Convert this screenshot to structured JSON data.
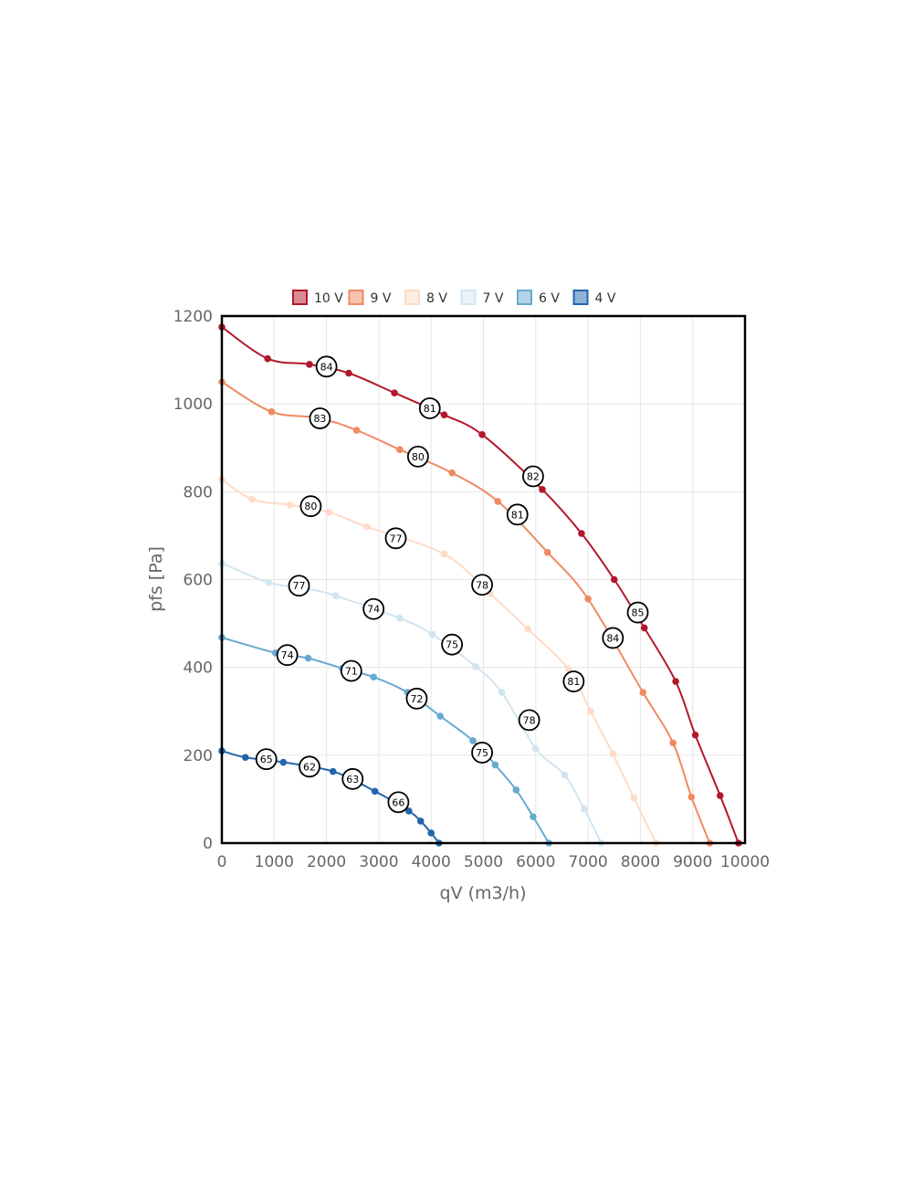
{
  "chart_data": {
    "type": "line",
    "title": "",
    "xlabel": "qV (m3/h)",
    "ylabel": "pfs [Pa]",
    "xlim": [
      0,
      10000
    ],
    "ylim": [
      0,
      1200
    ],
    "x_ticks": [
      "0",
      "1000",
      "2000",
      "3000",
      "4000",
      "5000",
      "6000",
      "7000",
      "8000",
      "9000",
      "10000"
    ],
    "y_ticks": [
      "0",
      "200",
      "400",
      "600",
      "800",
      "1000",
      "1200"
    ],
    "grid": true,
    "legend_position": "top",
    "series": [
      {
        "name": "10 V",
        "color": "#b2182b",
        "points": [
          [
            0,
            1175
          ],
          [
            875,
            1103
          ],
          [
            1675,
            1090
          ],
          [
            2425,
            1070
          ],
          [
            3300,
            1025
          ],
          [
            4250,
            975
          ],
          [
            4975,
            930
          ],
          [
            6125,
            805
          ],
          [
            6875,
            705
          ],
          [
            7500,
            600
          ],
          [
            8075,
            490
          ],
          [
            8675,
            368
          ],
          [
            9050,
            246
          ],
          [
            9525,
            108
          ],
          [
            9875,
            0
          ]
        ],
        "labels": [
          {
            "x": 2000,
            "y": 1085,
            "text": "84"
          },
          {
            "x": 3975,
            "y": 990,
            "text": "81"
          },
          {
            "x": 5950,
            "y": 835,
            "text": "82"
          },
          {
            "x": 7950,
            "y": 525,
            "text": "85"
          }
        ]
      },
      {
        "name": "9 V",
        "color": "#ef8a62",
        "points": [
          [
            0,
            1050
          ],
          [
            950,
            982
          ],
          [
            1850,
            968
          ],
          [
            2575,
            940
          ],
          [
            3400,
            896
          ],
          [
            4400,
            843
          ],
          [
            5275,
            778
          ],
          [
            6225,
            662
          ],
          [
            7000,
            556
          ],
          [
            8050,
            343
          ],
          [
            8625,
            228
          ],
          [
            8975,
            105
          ],
          [
            9325,
            0
          ]
        ],
        "labels": [
          {
            "x": 1875,
            "y": 967,
            "text": "83"
          },
          {
            "x": 3750,
            "y": 880,
            "text": "80"
          },
          {
            "x": 5650,
            "y": 748,
            "text": "81"
          },
          {
            "x": 7475,
            "y": 467,
            "text": "84"
          }
        ]
      },
      {
        "name": "8 V",
        "color": "#fddbc7",
        "points": [
          [
            0,
            828
          ],
          [
            575,
            783
          ],
          [
            1300,
            770
          ],
          [
            2050,
            753
          ],
          [
            2775,
            720
          ],
          [
            4250,
            658
          ],
          [
            5125,
            568
          ],
          [
            5850,
            487
          ],
          [
            6625,
            396
          ],
          [
            7050,
            300
          ],
          [
            7475,
            203
          ],
          [
            7875,
            103
          ],
          [
            8300,
            0
          ]
        ],
        "labels": [
          {
            "x": 1700,
            "y": 767,
            "text": "80"
          },
          {
            "x": 3325,
            "y": 694,
            "text": "77"
          },
          {
            "x": 4975,
            "y": 588,
            "text": "78"
          },
          {
            "x": 6725,
            "y": 368,
            "text": "81"
          }
        ]
      },
      {
        "name": "7 V",
        "color": "#d1e5f0",
        "points": [
          [
            0,
            637
          ],
          [
            900,
            593
          ],
          [
            1600,
            580
          ],
          [
            2175,
            563
          ],
          [
            3400,
            512
          ],
          [
            4025,
            475
          ],
          [
            4850,
            402
          ],
          [
            5350,
            343
          ],
          [
            6000,
            215
          ],
          [
            6550,
            155
          ],
          [
            6925,
            78
          ],
          [
            7250,
            0
          ]
        ],
        "labels": [
          {
            "x": 1475,
            "y": 586,
            "text": "77"
          },
          {
            "x": 2900,
            "y": 533,
            "text": "74"
          },
          {
            "x": 4400,
            "y": 452,
            "text": "75"
          },
          {
            "x": 5875,
            "y": 280,
            "text": "78"
          }
        ]
      },
      {
        "name": "6 V",
        "color": "#67a9cf",
        "points": [
          [
            0,
            468
          ],
          [
            1025,
            433
          ],
          [
            1650,
            421
          ],
          [
            2300,
            398
          ],
          [
            2900,
            378
          ],
          [
            3550,
            343
          ],
          [
            4175,
            289
          ],
          [
            4800,
            233
          ],
          [
            5225,
            178
          ],
          [
            5625,
            121
          ],
          [
            5950,
            60
          ],
          [
            6250,
            0
          ]
        ],
        "labels": [
          {
            "x": 1250,
            "y": 428,
            "text": "74"
          },
          {
            "x": 2475,
            "y": 392,
            "text": "71"
          },
          {
            "x": 3725,
            "y": 329,
            "text": "72"
          },
          {
            "x": 4975,
            "y": 206,
            "text": "75"
          }
        ]
      },
      {
        "name": "4 V",
        "color": "#2166ac",
        "points": [
          [
            0,
            210
          ],
          [
            450,
            195
          ],
          [
            1175,
            184
          ],
          [
            2125,
            163
          ],
          [
            2925,
            118
          ],
          [
            3575,
            73
          ],
          [
            3800,
            50
          ],
          [
            4000,
            23
          ],
          [
            4150,
            0
          ]
        ],
        "labels": [
          {
            "x": 850,
            "y": 191,
            "text": "65"
          },
          {
            "x": 1675,
            "y": 174,
            "text": "62"
          },
          {
            "x": 2500,
            "y": 146,
            "text": "63"
          },
          {
            "x": 3375,
            "y": 93,
            "text": "66"
          }
        ]
      }
    ]
  }
}
